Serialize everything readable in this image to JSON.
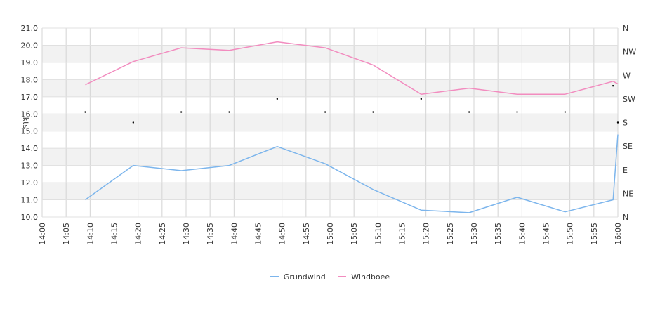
{
  "chart_data": {
    "type": "line",
    "title": "",
    "ylabel": "kts",
    "ylim": [
      10,
      21
    ],
    "yticks": [
      "10.0",
      "11.0",
      "12.0",
      "13.0",
      "14.0",
      "15.0",
      "16.0",
      "17.0",
      "18.0",
      "19.0",
      "20.0",
      "21.0"
    ],
    "y2_labels": [
      "N",
      "NE",
      "E",
      "SE",
      "S",
      "SW",
      "W",
      "NW",
      "N"
    ],
    "x_start": "14:00",
    "x_end": "16:00",
    "xticks": [
      "14:00",
      "14:05",
      "14:10",
      "14:15",
      "14:20",
      "14:25",
      "14:30",
      "14:35",
      "14:40",
      "14:45",
      "14:50",
      "14:55",
      "15:00",
      "15:05",
      "15:10",
      "15:15",
      "15:20",
      "15:25",
      "15:30",
      "15:35",
      "15:40",
      "15:45",
      "15:50",
      "15:55",
      "16:00"
    ],
    "grid": true,
    "legend_position": "bottom",
    "series": [
      {
        "name": "Grundwind",
        "color": "#7cb5ec",
        "x": [
          "14:09",
          "14:19",
          "14:29",
          "14:39",
          "14:49",
          "14:59",
          "15:09",
          "15:19",
          "15:29",
          "15:39",
          "15:49",
          "15:59",
          "16:00"
        ],
        "values": [
          11.0,
          13.0,
          12.7,
          13.0,
          14.1,
          13.1,
          11.6,
          10.4,
          10.25,
          11.15,
          10.3,
          11.0,
          14.8
        ]
      },
      {
        "name": "Windboee",
        "color": "#f28cbf",
        "x": [
          "14:09",
          "14:19",
          "14:29",
          "14:39",
          "14:49",
          "14:59",
          "15:09",
          "15:19",
          "15:29",
          "15:39",
          "15:49",
          "15:59",
          "16:00"
        ],
        "values": [
          17.7,
          19.05,
          19.85,
          19.7,
          20.2,
          19.85,
          18.85,
          17.15,
          17.5,
          17.15,
          17.15,
          17.9,
          17.75
        ]
      }
    ],
    "direction_points": {
      "x": [
        "14:09",
        "14:19",
        "14:29",
        "14:39",
        "14:49",
        "14:59",
        "15:09",
        "15:19",
        "15:29",
        "15:39",
        "15:49",
        "15:59",
        "16:00"
      ],
      "degrees": [
        200,
        180,
        200,
        200,
        225,
        200,
        200,
        225,
        200,
        200,
        200,
        250,
        180
      ]
    }
  }
}
